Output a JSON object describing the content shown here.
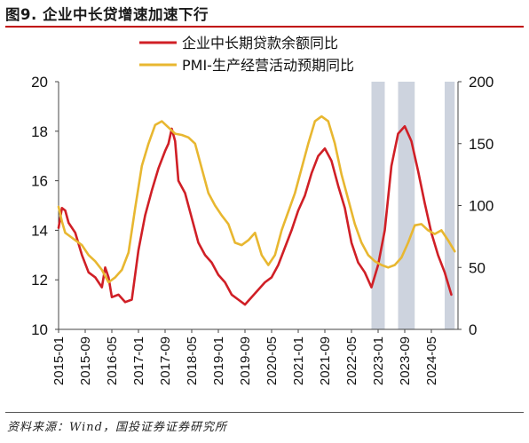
{
  "figure": {
    "title": "图9. 企业中长贷增速加速下行",
    "source": "资料来源：Wind，国投证券证券研究所"
  },
  "chart_data": {
    "type": "line",
    "title": "图9. 企业中长贷增速加速下行",
    "x_tick_labels": [
      "2015-01",
      "2015-09",
      "2016-05",
      "2017-01",
      "2017-09",
      "2018-05",
      "2019-01",
      "2019-09",
      "2020-05",
      "2021-01",
      "2021-09",
      "2022-05",
      "2023-01",
      "2023-09",
      "2024-05"
    ],
    "x_range": [
      "2015-01",
      "2024-12"
    ],
    "left_axis": {
      "min": 10,
      "max": 20,
      "ticks": [
        10,
        12,
        14,
        16,
        18,
        20
      ]
    },
    "right_axis": {
      "min": 0,
      "max": 200,
      "ticks": [
        0,
        50,
        100,
        150,
        200
      ]
    },
    "legend_position": "top",
    "grid": false,
    "shaded_periods": [
      {
        "start": "2022-11",
        "end": "2023-03",
        "color": "#cdd3de"
      },
      {
        "start": "2023-07",
        "end": "2023-12",
        "color": "#cdd3de"
      },
      {
        "start": "2024-09",
        "end": "2024-12",
        "color": "#cdd3de"
      }
    ],
    "series": [
      {
        "name": "企业中长期贷款余额同比",
        "axis": "left",
        "color": "#d01f26",
        "x": [
          "2015-01",
          "2015-02",
          "2015-03",
          "2015-04",
          "2015-06",
          "2015-08",
          "2015-10",
          "2015-12",
          "2016-02",
          "2016-03",
          "2016-04",
          "2016-05",
          "2016-07",
          "2016-09",
          "2016-11",
          "2017-01",
          "2017-03",
          "2017-05",
          "2017-07",
          "2017-09",
          "2017-10",
          "2017-11",
          "2017-12",
          "2018-01",
          "2018-03",
          "2018-05",
          "2018-07",
          "2018-09",
          "2018-11",
          "2019-01",
          "2019-03",
          "2019-05",
          "2019-07",
          "2019-09",
          "2019-11",
          "2020-01",
          "2020-03",
          "2020-05",
          "2020-07",
          "2020-09",
          "2020-11",
          "2021-01",
          "2021-03",
          "2021-05",
          "2021-07",
          "2021-09",
          "2021-11",
          "2022-01",
          "2022-03",
          "2022-05",
          "2022-07",
          "2022-09",
          "2022-11",
          "2023-01",
          "2023-03",
          "2023-05",
          "2023-07",
          "2023-09",
          "2023-11",
          "2024-01",
          "2024-03",
          "2024-05",
          "2024-07",
          "2024-09",
          "2024-11"
        ],
        "values": [
          14.1,
          14.9,
          14.8,
          14.3,
          13.9,
          13.0,
          12.3,
          12.1,
          11.7,
          12.5,
          12.1,
          11.3,
          11.4,
          11.1,
          11.2,
          13.2,
          14.6,
          15.6,
          16.5,
          17.2,
          17.5,
          18.1,
          17.6,
          16.0,
          15.5,
          14.5,
          13.5,
          13.0,
          12.7,
          12.2,
          11.9,
          11.4,
          11.2,
          11.0,
          11.3,
          11.6,
          11.9,
          12.1,
          12.6,
          13.3,
          14.0,
          14.8,
          15.4,
          16.3,
          17.0,
          17.3,
          16.8,
          15.8,
          14.9,
          13.5,
          12.7,
          12.3,
          11.7,
          12.6,
          14.0,
          16.6,
          17.9,
          18.2,
          17.6,
          16.4,
          15.1,
          13.9,
          13.0,
          12.3,
          11.4
        ]
      },
      {
        "name": "PMI-生产经营活动预期同比",
        "axis": "right",
        "color": "#e8b730",
        "x": [
          "2015-01",
          "2015-02",
          "2015-03",
          "2015-04",
          "2015-06",
          "2015-08",
          "2015-10",
          "2015-12",
          "2016-02",
          "2016-04",
          "2016-06",
          "2016-08",
          "2016-10",
          "2016-12",
          "2017-02",
          "2017-04",
          "2017-06",
          "2017-08",
          "2017-10",
          "2017-12",
          "2018-02",
          "2018-04",
          "2018-06",
          "2018-08",
          "2018-10",
          "2018-12",
          "2019-02",
          "2019-04",
          "2019-06",
          "2019-08",
          "2019-10",
          "2019-12",
          "2020-02",
          "2020-04",
          "2020-06",
          "2020-08",
          "2020-10",
          "2020-12",
          "2021-02",
          "2021-04",
          "2021-06",
          "2021-08",
          "2021-10",
          "2021-12",
          "2022-02",
          "2022-04",
          "2022-06",
          "2022-08",
          "2022-10",
          "2022-12",
          "2023-02",
          "2023-04",
          "2023-06",
          "2023-08",
          "2023-10",
          "2023-12",
          "2024-02",
          "2024-04",
          "2024-06",
          "2024-08",
          "2024-10",
          "2024-12"
        ],
        "values": [
          99,
          87,
          78,
          76,
          72,
          68,
          60,
          55,
          48,
          38,
          42,
          48,
          62,
          98,
          132,
          150,
          165,
          168,
          163,
          158,
          157,
          155,
          150,
          130,
          110,
          100,
          92,
          85,
          70,
          68,
          72,
          78,
          60,
          52,
          60,
          80,
          95,
          110,
          130,
          150,
          168,
          172,
          168,
          150,
          125,
          105,
          85,
          70,
          60,
          55,
          52,
          50,
          52,
          58,
          70,
          84,
          85,
          80,
          77,
          80,
          72,
          63
        ]
      }
    ]
  }
}
